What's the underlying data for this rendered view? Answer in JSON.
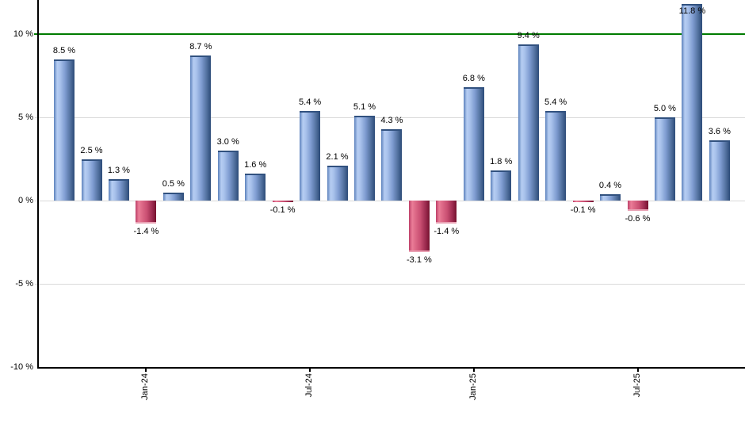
{
  "chart_data": {
    "type": "bar",
    "title": "",
    "xlabel": "",
    "ylabel": "",
    "unit": "%",
    "ylim": [
      -10,
      12
    ],
    "grid": true,
    "legend": null,
    "bars": [
      {
        "value": 8.5,
        "label": "8.5 %"
      },
      {
        "value": 2.5,
        "label": "2.5 %"
      },
      {
        "value": 1.3,
        "label": "1.3 %"
      },
      {
        "value": -1.4,
        "label": "-1.4 %"
      },
      {
        "value": 0.5,
        "label": "0.5 %"
      },
      {
        "value": 8.7,
        "label": "8.7 %"
      },
      {
        "value": 3.0,
        "label": "3.0 %"
      },
      {
        "value": 1.6,
        "label": "1.6 %"
      },
      {
        "value": -0.1,
        "label": "-0.1 %"
      },
      {
        "value": 5.4,
        "label": "5.4 %"
      },
      {
        "value": 2.1,
        "label": "2.1 %"
      },
      {
        "value": 5.1,
        "label": "5.1 %"
      },
      {
        "value": 4.3,
        "label": "4.3 %"
      },
      {
        "value": -3.1,
        "label": "-3.1 %"
      },
      {
        "value": -1.4,
        "label": "-1.4 %"
      },
      {
        "value": 6.8,
        "label": "6.8 %"
      },
      {
        "value": 1.8,
        "label": "1.8 %"
      },
      {
        "value": 9.4,
        "label": "9.4 %"
      },
      {
        "value": 5.4,
        "label": "5.4 %"
      },
      {
        "value": -0.1,
        "label": "-0.1 %"
      },
      {
        "value": 0.4,
        "label": "0.4 %"
      },
      {
        "value": -0.6,
        "label": "-0.6 %"
      },
      {
        "value": 5.0,
        "label": "5.0 %"
      },
      {
        "value": 11.8,
        "label": "11.8 %"
      },
      {
        "value": 3.6,
        "label": "3.6 %"
      }
    ],
    "y_ticks": [
      {
        "value": 10,
        "label": "10 %"
      },
      {
        "value": 5,
        "label": "5 %"
      },
      {
        "value": 0,
        "label": "0 %"
      },
      {
        "value": -5,
        "label": "-5 %"
      },
      {
        "value": -10,
        "label": "-10 %"
      }
    ],
    "x_ticks": [
      {
        "bar_index": 3,
        "label": "Jan-24"
      },
      {
        "bar_index": 9,
        "label": "Jul-24"
      },
      {
        "bar_index": 15,
        "label": "Jan-25"
      },
      {
        "bar_index": 21,
        "label": "Jul-25"
      }
    ],
    "reference_line": {
      "value": 10,
      "color": "#007c00"
    },
    "colors": {
      "positive_bar": "#7e9bd0",
      "negative_bar": "#c94f72",
      "grid": "#d9d9d9",
      "axis": "#000000",
      "text": "#000000"
    }
  }
}
